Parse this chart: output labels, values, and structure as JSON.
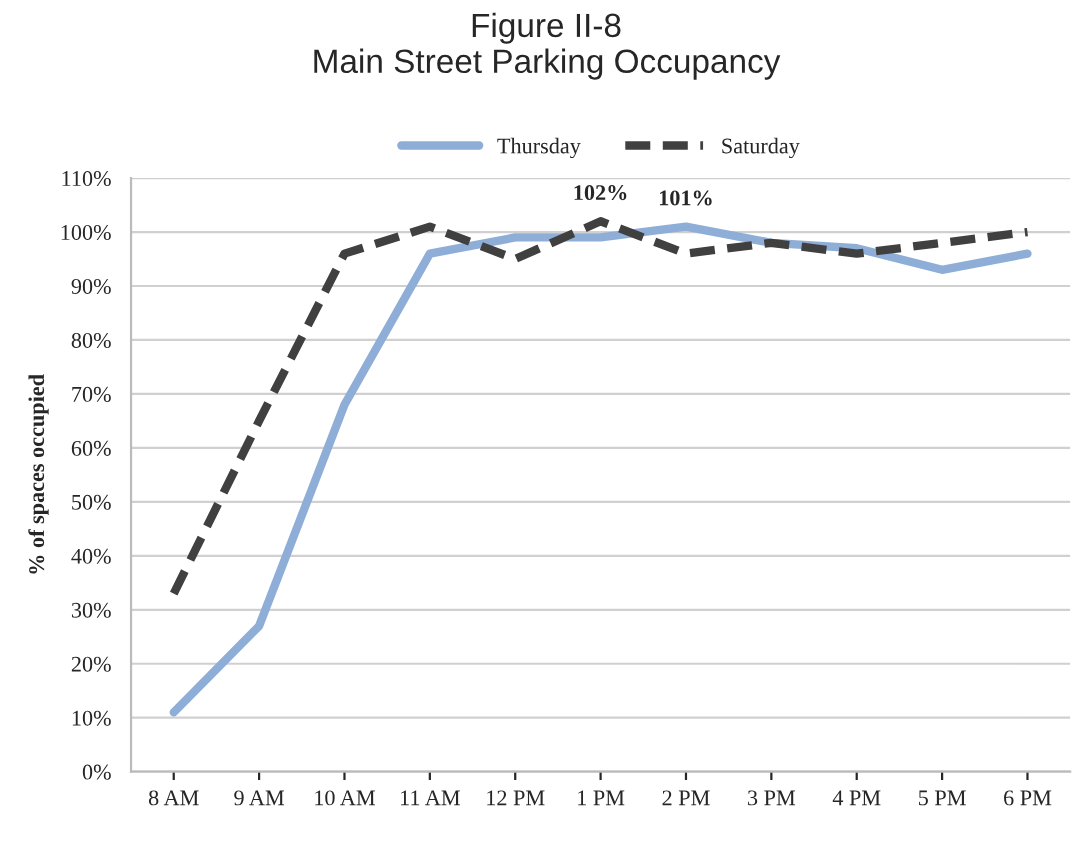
{
  "chart_data": {
    "type": "line",
    "title": "Figure II-8\nMain Street Parking Occupancy",
    "ylabel": "% of spaces occupied",
    "categories": [
      "8 AM",
      "9 AM",
      "10 AM",
      "11 AM",
      "12 PM",
      "1 PM",
      "2 PM",
      "3 PM",
      "4 PM",
      "5 PM",
      "6 PM"
    ],
    "series": [
      {
        "name": "Thursday",
        "color": "#8eaed8",
        "line_style": "solid",
        "values": [
          11,
          27,
          68,
          96,
          99,
          99,
          101,
          98,
          97,
          93,
          96
        ]
      },
      {
        "name": "Saturday",
        "color": "#404040",
        "line_style": "dashed",
        "values": [
          33,
          65,
          96,
          101,
          95,
          102,
          96,
          98,
          96,
          98,
          100
        ]
      }
    ],
    "ylim": [
      0,
      110
    ],
    "yticks": [
      {
        "value": 0,
        "label": "0%"
      },
      {
        "value": 10,
        "label": "10%"
      },
      {
        "value": 20,
        "label": "20%"
      },
      {
        "value": 30,
        "label": "30%"
      },
      {
        "value": 40,
        "label": "40%"
      },
      {
        "value": 50,
        "label": "50%"
      },
      {
        "value": 60,
        "label": "60%"
      },
      {
        "value": 70,
        "label": "70%"
      },
      {
        "value": 80,
        "label": "80%"
      },
      {
        "value": 90,
        "label": "90%"
      },
      {
        "value": 100,
        "label": "100%"
      },
      {
        "value": 110,
        "label": "110%"
      }
    ],
    "annotations": [
      {
        "text": "102%",
        "x": "1 PM",
        "y": 102
      },
      {
        "text": "101%",
        "x": "2 PM",
        "y": 101
      }
    ],
    "grid": "y",
    "legend": "top",
    "marker": "none"
  }
}
